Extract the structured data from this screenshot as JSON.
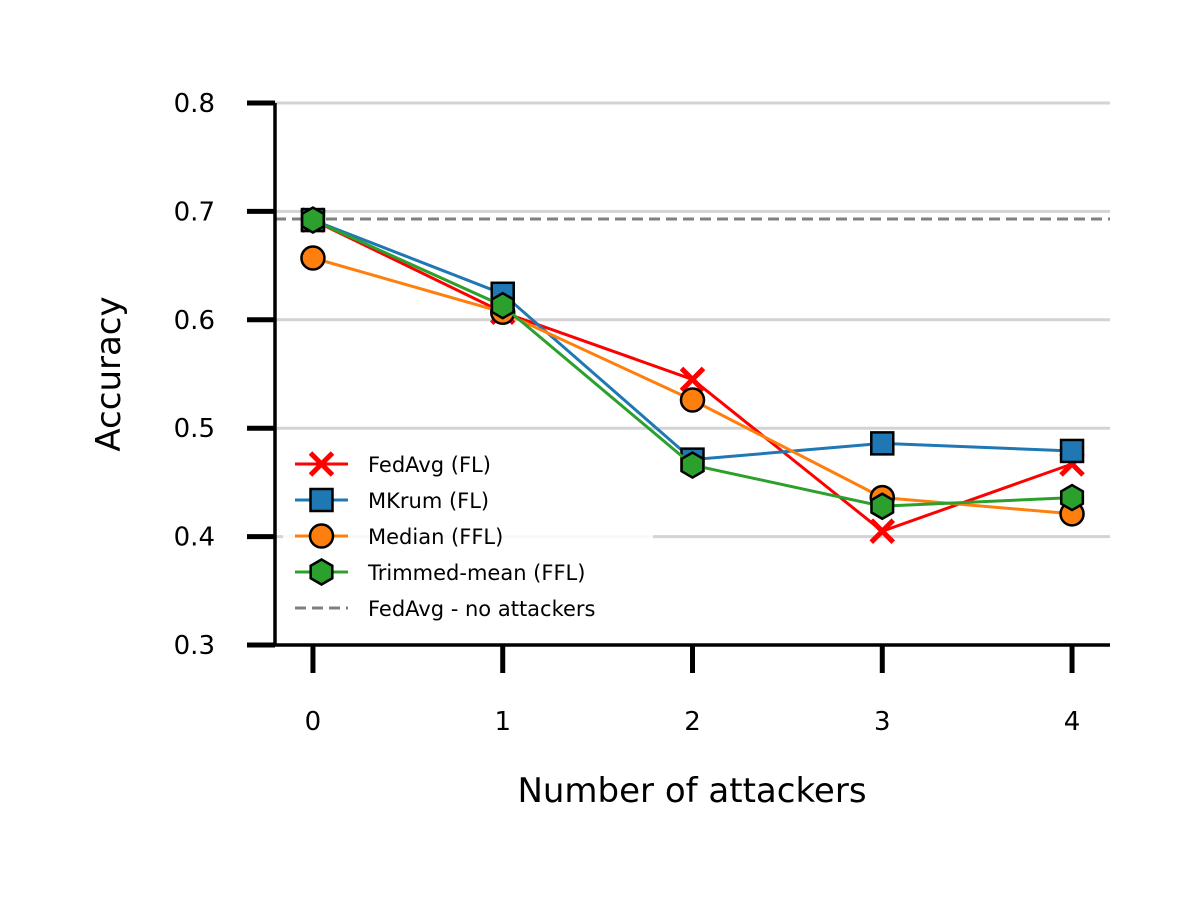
{
  "chart_data": {
    "type": "line",
    "title": "",
    "xlabel": "Number of attackers",
    "ylabel": "Accuracy",
    "x": [
      0,
      1,
      2,
      3,
      4
    ],
    "x_tick_labels": [
      "0",
      "1",
      "2",
      "3",
      "4"
    ],
    "y_ticks": [
      0.3,
      0.4,
      0.5,
      0.6,
      0.7,
      0.8
    ],
    "y_tick_labels": [
      "0.3",
      "0.4",
      "0.5",
      "0.6",
      "0.7",
      "0.8"
    ],
    "ylim": [
      0.3,
      0.8
    ],
    "xlim": [
      -0.2,
      4.2
    ],
    "grid": "horizontal",
    "legend_position": "lower-left",
    "series": [
      {
        "name": "FedAvg (FL)",
        "values": [
          0.692,
          0.607,
          0.545,
          0.405,
          0.467
        ],
        "color": "#ff0000",
        "marker": "x"
      },
      {
        "name": "MKrum (FL)",
        "values": [
          0.692,
          0.624,
          0.471,
          0.486,
          0.479
        ],
        "color": "#1f77b4",
        "marker": "square"
      },
      {
        "name": "Median (FFL)",
        "values": [
          0.657,
          0.607,
          0.526,
          0.436,
          0.421
        ],
        "color": "#ff7f0e",
        "marker": "circle"
      },
      {
        "name": "Trimmed-mean (FFL)",
        "values": [
          0.692,
          0.613,
          0.466,
          0.428,
          0.436
        ],
        "color": "#2ca02c",
        "marker": "hexagon"
      }
    ],
    "reference_line": {
      "name": "FedAvg - no attackers",
      "value": 0.693,
      "color": "#808080",
      "style": "dashed"
    }
  }
}
